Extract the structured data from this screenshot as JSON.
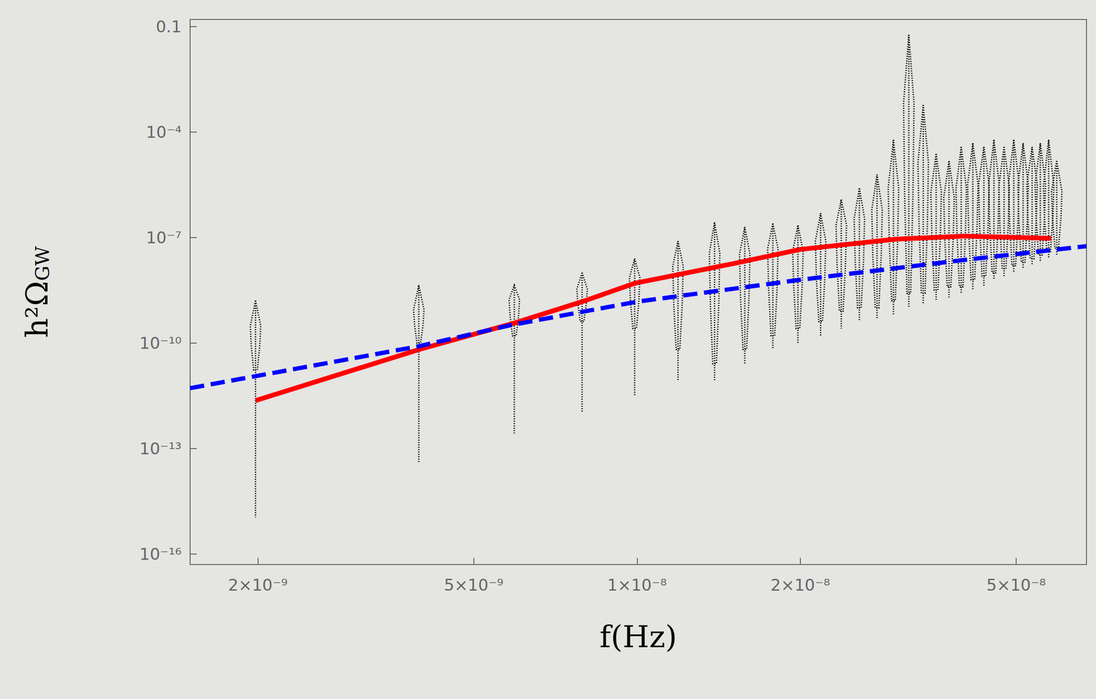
{
  "chart_data": {
    "type": "line",
    "xlabel": "f(Hz)",
    "ylabel": "h²ΩGW",
    "log": true,
    "grid": false,
    "xlim": [
      1.5e-09,
      6.74e-08
    ],
    "ylim": [
      5e-17,
      0.16
    ],
    "xticks": [
      {
        "value": 2e-09,
        "label": "2×10⁻⁹"
      },
      {
        "value": 5e-09,
        "label": "5×10⁻⁹"
      },
      {
        "value": 1e-08,
        "label": "1×10⁻⁸"
      },
      {
        "value": 2e-08,
        "label": "2×10⁻⁸"
      },
      {
        "value": 5e-08,
        "label": "5×10⁻⁸"
      }
    ],
    "yticks": [
      {
        "value": 1e-16,
        "label": "10⁻¹⁶"
      },
      {
        "value": 1e-13,
        "label": "10⁻¹³"
      },
      {
        "value": 1e-10,
        "label": "10⁻¹⁰"
      },
      {
        "value": 1e-07,
        "label": "10⁻⁷"
      },
      {
        "value": 0.0001,
        "label": "10⁻⁴"
      },
      0.1
    ],
    "series": [
      {
        "color": "#ff0000",
        "line_style": "solid",
        "x": [
          1.98e-09,
          3.96e-09,
          5.94e-09,
          7.92e-09,
          9.9e-09,
          1.5e-08,
          2e-08,
          3e-08,
          4e-08,
          5.8e-08
        ],
        "values": [
          2.3e-12,
          6.5e-11,
          3.7e-10,
          1.5e-09,
          5e-09,
          1.8e-08,
          4.6e-08,
          9e-08,
          1.1e-07,
          9.5e-08
        ]
      },
      {
        "color": "#0000ff",
        "line_style": "dashed",
        "x": [
          1.5e-09,
          3.96e-09,
          5.83e-09,
          1e-08,
          2e-08,
          4e-08,
          6.74e-08
        ],
        "values": [
          5.2e-12,
          8.1e-11,
          3.2e-10,
          1.5e-09,
          6.3e-09,
          2.3e-08,
          5.7e-08
        ]
      }
    ],
    "violins": {
      "color": "#000000",
      "x": [
        1.98e-09,
        3.96e-09,
        5.94e-09,
        7.92e-09,
        9.9e-09,
        1.19e-08,
        1.39e-08,
        1.58e-08,
        1.78e-08,
        1.98e-08,
        2.18e-08,
        2.38e-08,
        2.57e-08,
        2.77e-08,
        2.97e-08,
        3.17e-08,
        3.37e-08,
        3.56e-08,
        3.76e-08,
        3.96e-08,
        4.16e-08,
        4.36e-08,
        4.55e-08,
        4.75e-08,
        4.95e-08,
        5.15e-08,
        5.35e-08,
        5.54e-08,
        5.74e-08,
        5.94e-08
      ],
      "top": [
        1.6e-09,
        4.4e-09,
        4.4e-09,
        1e-08,
        2.5e-08,
        7.9e-08,
        2.7e-07,
        2e-07,
        2.5e-07,
        2.2e-07,
        4.9e-07,
        1.2e-06,
        2.5e-06,
        6.2e-06,
        6e-05,
        0.058,
        0.00059,
        2.4e-05,
        1.5e-05,
        3.8e-05,
        4.8e-05,
        3.8e-05,
        6e-05,
        3.8e-05,
        6e-05,
        4.8e-05,
        3.8e-05,
        4.8e-05,
        6e-05,
        1.5e-05
      ],
      "body_top": [
        5.1e-10,
        1.3e-09,
        2.6e-09,
        5e-09,
        1.3e-08,
        4e-08,
        1.3e-07,
        1e-07,
        1.3e-07,
        1e-07,
        2e-07,
        6.2e-07,
        9.8e-07,
        1.9e-06,
        9.6e-06,
        0.0059,
        6e-05,
        6.2e-06,
        3.9e-06,
        7.6e-06,
        9.6e-06,
        9.6e-06,
        9.6e-06,
        7.6e-06,
        9.6e-06,
        7.6e-06,
        7.6e-06,
        7.6e-06,
        6.2e-06,
        3.9e-06
      ],
      "body_bottom": [
        1.7e-11,
        1e-10,
        1.6e-10,
        4.1e-10,
        2.6e-10,
        6.6e-11,
        2.6e-11,
        6.6e-11,
        1.6e-10,
        2.6e-10,
        4.1e-10,
        8.1e-10,
        1e-09,
        1e-09,
        1.6e-09,
        2.6e-09,
        2.6e-09,
        3.2e-09,
        4e-09,
        4e-09,
        6.3e-09,
        8e-09,
        1e-08,
        1.3e-08,
        1.6e-08,
        2e-08,
        2.5e-08,
        3.2e-08,
        4e-08,
        5e-08
      ],
      "bottom": [
        1.1e-15,
        3.9e-14,
        2.7e-13,
        1.1e-12,
        3.3e-12,
        8.3e-12,
        8.3e-12,
        2.6e-11,
        6.6e-11,
        1e-10,
        1.6e-10,
        2.6e-10,
        4.1e-10,
        5.1e-10,
        6.5e-10,
        1e-09,
        1.3e-09,
        1.6e-09,
        2e-09,
        2.6e-09,
        3.2e-09,
        4e-09,
        6.3e-09,
        8e-09,
        1e-08,
        1.3e-08,
        1.6e-08,
        2e-08,
        2.5e-08,
        3.2e-08
      ]
    }
  }
}
